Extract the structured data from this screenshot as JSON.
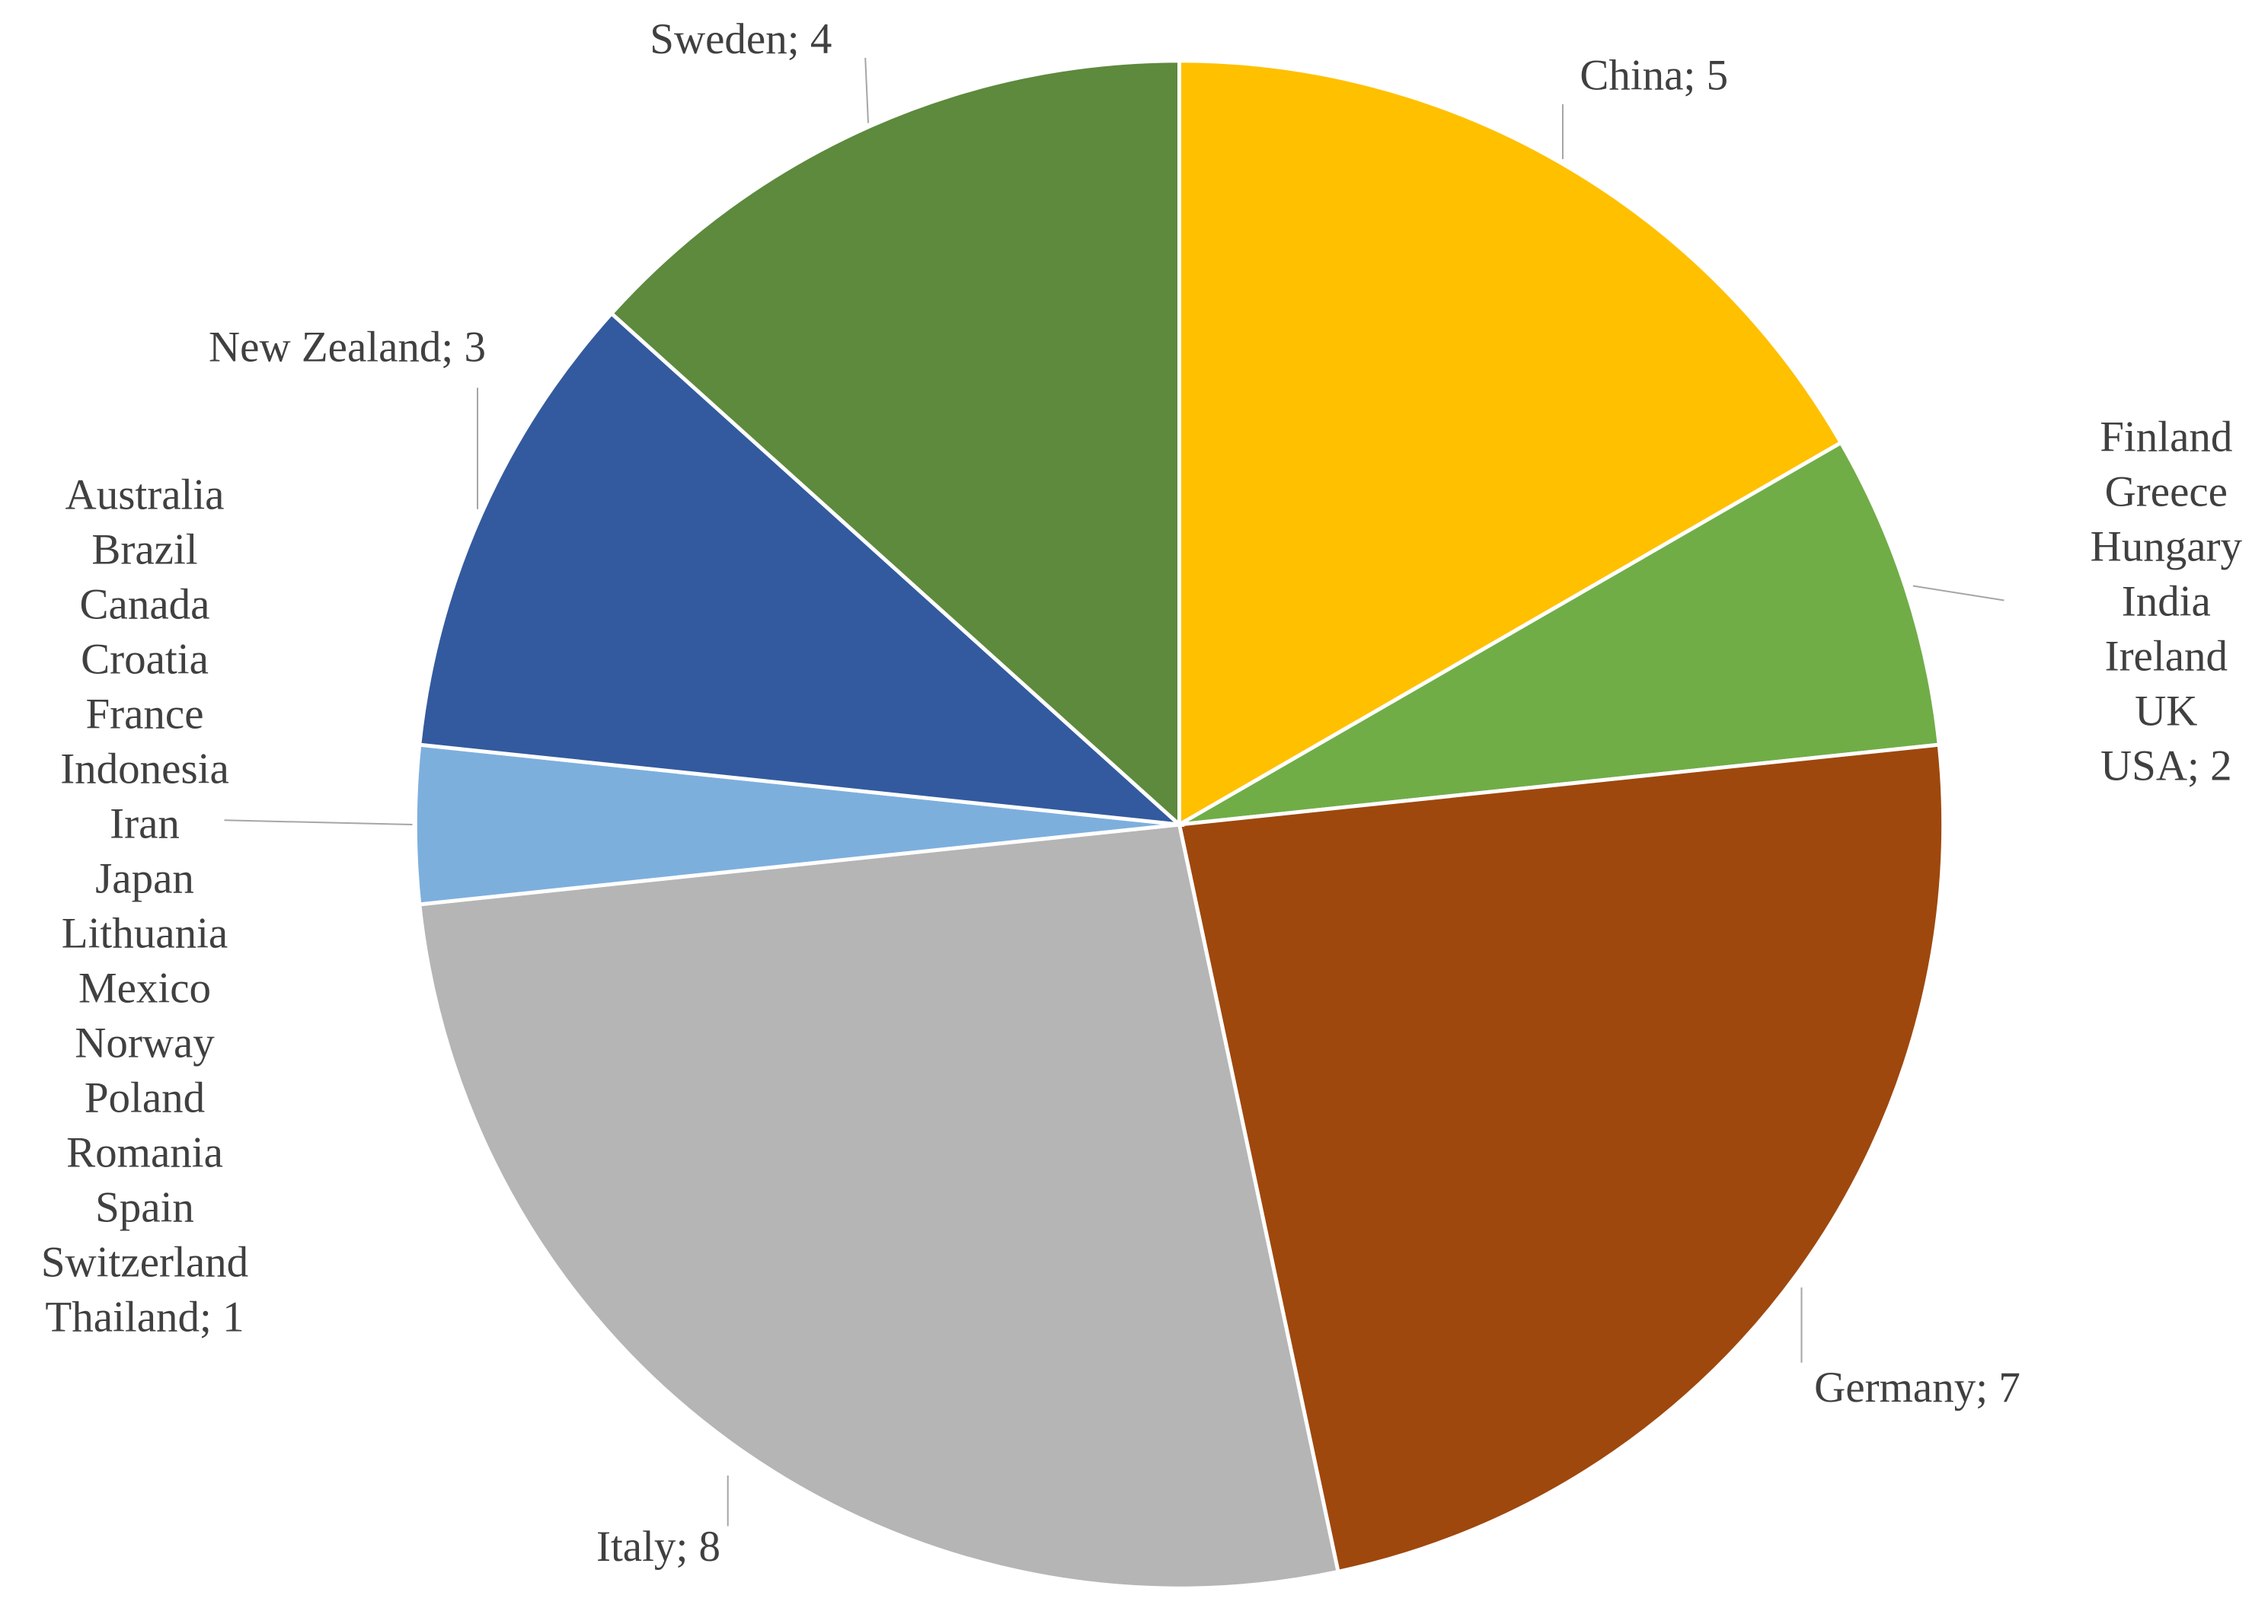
{
  "chart_data": {
    "type": "pie",
    "categories": [
      [
        "China"
      ],
      [
        "Finland",
        "Greece",
        "Hungary",
        "India",
        "Ireland",
        "UK",
        "USA"
      ],
      [
        "Germany"
      ],
      [
        "Italy"
      ],
      [
        "Australia",
        "Brazil",
        "Canada",
        "Croatia",
        "France",
        "Indonesia",
        "Iran",
        "Japan",
        "Lithuania",
        "Mexico",
        "Norway",
        "Poland",
        "Romania",
        "Spain",
        "Switzerland",
        "Thailand"
      ],
      [
        "New Zealand"
      ],
      [
        "Sweden"
      ]
    ],
    "values": [
      5,
      2,
      7,
      8,
      1,
      3,
      4
    ],
    "colors": [
      "#FFC000",
      "#70AD47",
      "#9E480E",
      "#B5B5B5",
      "#7DAFDD",
      "#335A9E",
      "#5D8A3D"
    ],
    "label_separator": "; "
  }
}
